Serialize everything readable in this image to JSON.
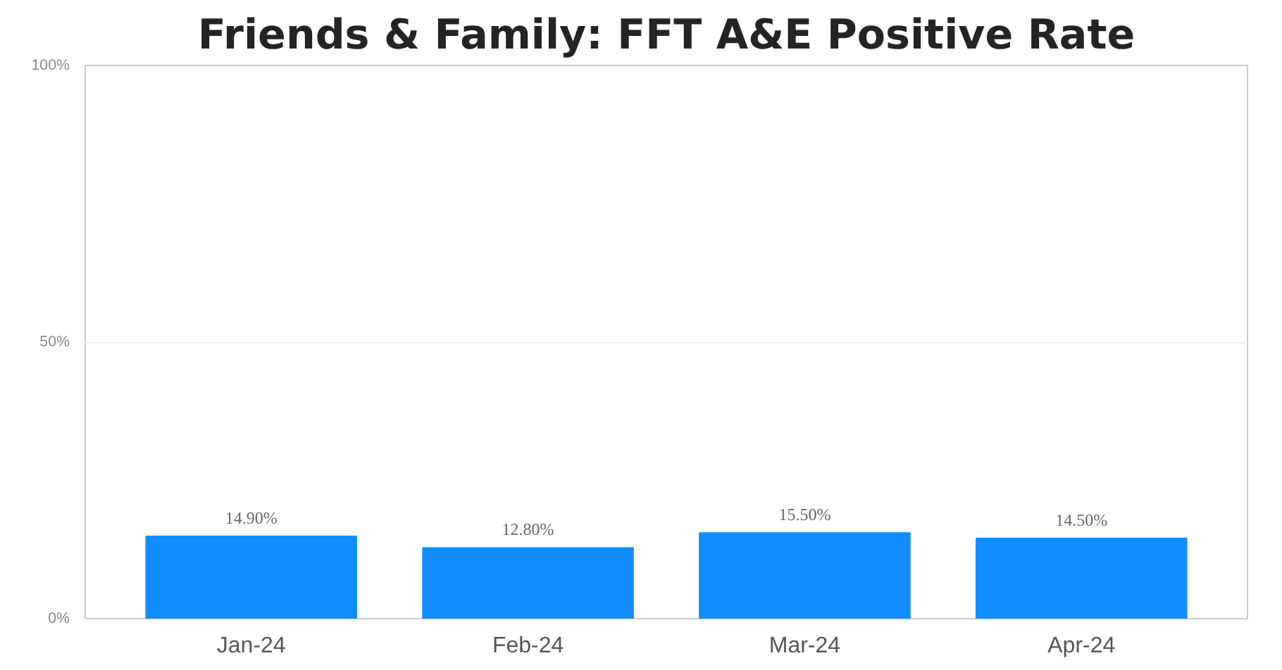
{
  "chart_data": {
    "type": "bar",
    "title": "Friends & Family: FFT A&E Positive Rate",
    "categories": [
      "Jan-24",
      "Feb-24",
      "Mar-24",
      "Apr-24"
    ],
    "values": [
      14.9,
      12.8,
      15.5,
      14.5
    ],
    "value_labels": [
      "14.90%",
      "12.80%",
      "15.50%",
      "14.50%"
    ],
    "color": "#118dff",
    "ylim": [
      0,
      100
    ],
    "yticks": [
      {
        "value": 0,
        "label": "0%"
      },
      {
        "value": 50,
        "label": "50%"
      },
      {
        "value": 100,
        "label": "100%"
      }
    ],
    "grid": "y"
  }
}
